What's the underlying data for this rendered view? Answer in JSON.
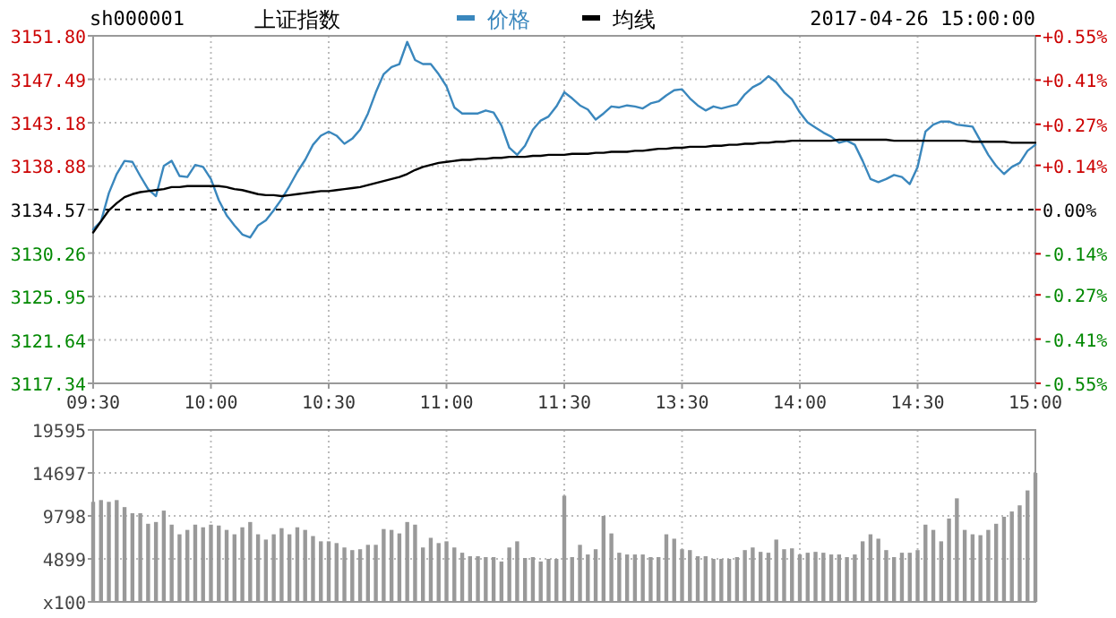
{
  "chart_data": [
    {
      "type": "line",
      "title": "上证指数",
      "subtitle": "sh000001",
      "annotations": [
        "2017-04-26 15:00:00"
      ],
      "categories": [
        "09:30",
        null,
        null,
        null,
        null,
        null,
        null,
        null,
        null,
        null,
        null,
        null,
        null,
        null,
        null,
        "10:00",
        null,
        null,
        null,
        null,
        null,
        null,
        null,
        null,
        null,
        null,
        null,
        null,
        null,
        null,
        "10:30",
        null,
        null,
        null,
        null,
        null,
        null,
        null,
        null,
        null,
        null,
        null,
        null,
        null,
        null,
        "11:00",
        null,
        null,
        null,
        null,
        null,
        null,
        null,
        null,
        null,
        null,
        null,
        null,
        null,
        null,
        "11:30",
        null,
        null,
        null,
        null,
        null,
        null,
        null,
        null,
        null,
        null,
        null,
        null,
        null,
        null,
        "13:30",
        null,
        null,
        null,
        null,
        null,
        null,
        null,
        null,
        null,
        null,
        null,
        null,
        null,
        null,
        "14:00",
        null,
        null,
        null,
        null,
        null,
        null,
        null,
        null,
        null,
        null,
        null,
        null,
        null,
        null,
        "14:30",
        null,
        null,
        null,
        null,
        null,
        null,
        null,
        null,
        null,
        null,
        null,
        null,
        null,
        null,
        "15:00"
      ],
      "series": [
        {
          "name": "价格",
          "color": "#3a87bd",
          "values": [
            3132.6,
            3133.4,
            3136.2,
            3138.1,
            3139.4,
            3139.3,
            3137.9,
            3136.6,
            3135.9,
            3138.9,
            3139.4,
            3137.9,
            3137.8,
            3139.0,
            3138.8,
            3137.6,
            3135.5,
            3134.0,
            3133.0,
            3132.1,
            3131.8,
            3133.0,
            3133.5,
            3134.5,
            3135.6,
            3136.9,
            3138.3,
            3139.5,
            3141.0,
            3141.9,
            3142.3,
            3141.9,
            3141.1,
            3141.6,
            3142.5,
            3144.1,
            3146.2,
            3148.0,
            3148.7,
            3149.0,
            3151.2,
            3149.4,
            3149.0,
            3149.0,
            3148.0,
            3146.8,
            3144.7,
            3144.1,
            3144.1,
            3144.1,
            3144.4,
            3144.2,
            3142.9,
            3140.7,
            3140.0,
            3140.9,
            3142.5,
            3143.4,
            3143.8,
            3144.8,
            3146.2,
            3145.6,
            3144.9,
            3144.5,
            3143.5,
            3144.1,
            3144.8,
            3144.7,
            3144.9,
            3144.8,
            3144.6,
            3145.1,
            3145.3,
            3145.9,
            3146.4,
            3146.5,
            3145.6,
            3144.9,
            3144.4,
            3144.8,
            3144.6,
            3144.8,
            3145.0,
            3146.0,
            3146.7,
            3147.1,
            3147.8,
            3147.2,
            3146.2,
            3145.5,
            3144.2,
            3143.2,
            3142.7,
            3142.2,
            3141.8,
            3141.2,
            3141.4,
            3141.0,
            3139.4,
            3137.6,
            3137.3,
            3137.6,
            3138.0,
            3137.8,
            3137.1,
            3138.8,
            3142.3,
            3143.0,
            3143.3,
            3143.3,
            3143.0,
            3142.9,
            3142.8,
            3141.4,
            3140.0,
            3138.9,
            3138.1,
            3138.8,
            3139.2,
            3140.4,
            3141.0
          ]
        },
        {
          "name": "均线",
          "color": "#000000",
          "values": [
            3132.3,
            3133.4,
            3134.5,
            3135.2,
            3135.8,
            3136.1,
            3136.3,
            3136.4,
            3136.5,
            3136.6,
            3136.8,
            3136.8,
            3136.9,
            3136.9,
            3136.9,
            3136.9,
            3136.9,
            3136.8,
            3136.6,
            3136.5,
            3136.3,
            3136.1,
            3136.0,
            3136.0,
            3135.9,
            3136.0,
            3136.1,
            3136.2,
            3136.3,
            3136.4,
            3136.4,
            3136.5,
            3136.6,
            3136.7,
            3136.8,
            3137.0,
            3137.2,
            3137.4,
            3137.6,
            3137.8,
            3138.1,
            3138.5,
            3138.8,
            3139.0,
            3139.2,
            3139.3,
            3139.4,
            3139.5,
            3139.5,
            3139.6,
            3139.6,
            3139.7,
            3139.7,
            3139.8,
            3139.8,
            3139.8,
            3139.9,
            3139.9,
            3140.0,
            3140.0,
            3140.0,
            3140.1,
            3140.1,
            3140.1,
            3140.2,
            3140.2,
            3140.3,
            3140.3,
            3140.3,
            3140.4,
            3140.4,
            3140.5,
            3140.6,
            3140.6,
            3140.7,
            3140.7,
            3140.8,
            3140.8,
            3140.8,
            3140.9,
            3140.9,
            3141.0,
            3141.0,
            3141.1,
            3141.1,
            3141.2,
            3141.2,
            3141.3,
            3141.3,
            3141.4,
            3141.4,
            3141.4,
            3141.4,
            3141.4,
            3141.4,
            3141.5,
            3141.5,
            3141.5,
            3141.5,
            3141.5,
            3141.5,
            3141.5,
            3141.4,
            3141.4,
            3141.4,
            3141.4,
            3141.4,
            3141.4,
            3141.4,
            3141.4,
            3141.4,
            3141.4,
            3141.3,
            3141.3,
            3141.3,
            3141.3,
            3141.3,
            3141.2,
            3141.2,
            3141.2,
            3141.2
          ]
        }
      ],
      "ylim": [
        3117.34,
        3151.8
      ],
      "yticks": [
        {
          "value": 3151.8,
          "label": "3151.80"
        },
        3147.49,
        3143.18,
        3138.88,
        3134.57,
        3130.26,
        3125.95,
        3121.64,
        3117.34
      ],
      "y2lim": [
        -0.55,
        0.55
      ],
      "y2ticks": [
        {
          "value": 0.55,
          "label": "+0.55%"
        },
        {
          "value": 0.41,
          "label": "+0.41%"
        },
        {
          "value": 0.27,
          "label": "+0.27%"
        },
        {
          "value": 0.14,
          "label": "+0.14%"
        },
        {
          "value": 0,
          "label": "0.00%"
        },
        {
          "value": -0.14,
          "label": "-0.14%"
        },
        {
          "value": -0.27,
          "label": "-0.27%"
        },
        {
          "value": -0.41,
          "label": "-0.41%"
        },
        {
          "value": -0.55,
          "label": "-0.55%"
        }
      ],
      "ref_lines": [
        {
          "axis": "y",
          "value": 3134.57,
          "color": "#000000",
          "line_style": "dashed"
        }
      ],
      "grid": true,
      "legend": "top",
      "marker": "none",
      "line_style": "solid"
    },
    {
      "type": "bar",
      "categories": [
        null,
        null,
        null,
        null,
        null,
        null,
        null,
        null,
        null,
        null,
        null,
        null,
        null,
        null,
        null,
        null,
        null,
        null,
        null,
        null,
        null,
        null,
        null,
        null,
        null,
        null,
        null,
        null,
        null,
        null,
        null,
        null,
        null,
        null,
        null,
        null,
        null,
        null,
        null,
        null,
        null,
        null,
        null,
        null,
        null,
        null,
        null,
        null,
        null,
        null,
        null,
        null,
        null,
        null,
        null,
        null,
        null,
        null,
        null,
        null,
        null,
        null,
        null,
        null,
        null,
        null,
        null,
        null,
        null,
        null,
        null,
        null,
        null,
        null,
        null,
        null,
        null,
        null,
        null,
        null,
        null,
        null,
        null,
        null,
        null,
        null,
        null,
        null,
        null,
        null,
        null,
        null,
        null,
        null,
        null,
        null,
        null,
        null,
        null,
        null,
        null,
        null,
        null,
        null,
        null,
        null,
        null,
        null,
        null,
        null,
        null,
        null,
        null,
        null,
        null,
        null,
        null,
        null,
        null,
        null,
        null
      ],
      "series": [
        {
          "color": "#999999",
          "values": [
            11400,
            11600,
            11400,
            11600,
            10800,
            10100,
            10100,
            8900,
            9100,
            10400,
            8800,
            7700,
            8200,
            8800,
            8500,
            8800,
            8700,
            8200,
            7700,
            8500,
            9100,
            7700,
            7100,
            7700,
            8400,
            7700,
            8500,
            8200,
            7500,
            6900,
            6900,
            6700,
            6200,
            5900,
            6000,
            6500,
            6500,
            8300,
            8200,
            7800,
            9100,
            8800,
            6200,
            7300,
            6700,
            6900,
            6200,
            5600,
            5200,
            5200,
            5100,
            5100,
            4600,
            6200,
            6900,
            5000,
            5100,
            4600,
            4900,
            4900,
            12100,
            5100,
            6500,
            5400,
            6000,
            9800,
            7800,
            5600,
            5400,
            5400,
            5400,
            5100,
            5100,
            7700,
            7200,
            6000,
            5900,
            5200,
            5200,
            4900,
            4900,
            4900,
            5100,
            5900,
            6200,
            5700,
            5600,
            7100,
            6000,
            6100,
            5400,
            5600,
            5700,
            5600,
            5400,
            5400,
            5100,
            5400,
            6900,
            7700,
            7200,
            5900,
            5100,
            5600,
            5600,
            5900,
            8800,
            8200,
            6900,
            9500,
            11800,
            8200,
            7700,
            7600,
            8200,
            8900,
            9700,
            10300,
            11000,
            12700,
            14700
          ]
        }
      ],
      "ylim": [
        0,
        19595
      ],
      "yticks": [
        19595,
        14697,
        9798,
        4899,
        {
          "value": 0,
          "label": "x100"
        }
      ],
      "grid": true,
      "tick_labels": "y"
    }
  ]
}
